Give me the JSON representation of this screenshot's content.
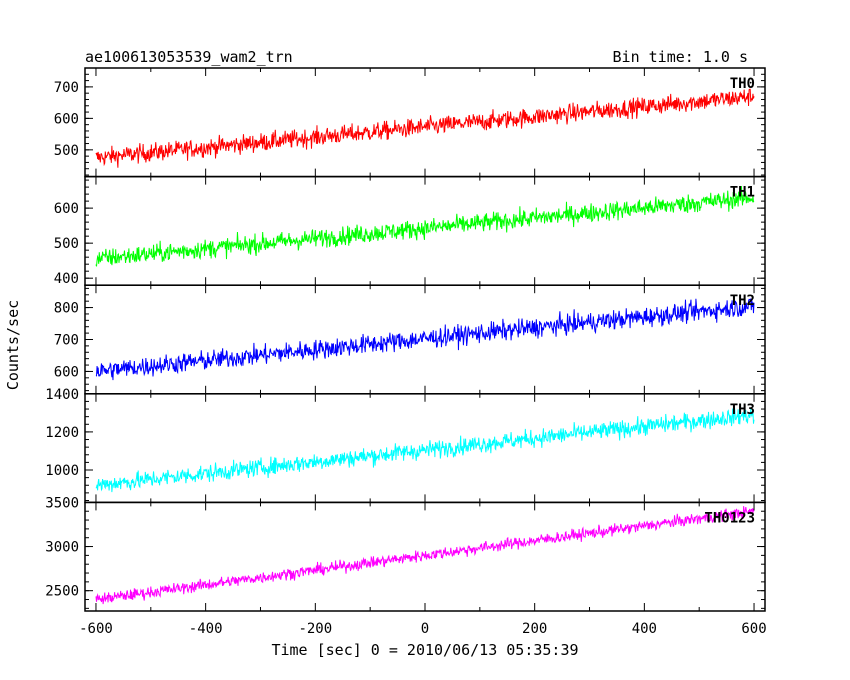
{
  "header": {
    "title": "ae100613053539_wam2_trn",
    "bin_time": "Bin time: 1.0 s"
  },
  "axes": {
    "xlabel": "Time [sec] 0 = 2010/06/13 05:35:39",
    "ylabel": "Counts/sec"
  },
  "chart_data": {
    "type": "line",
    "title": "ae100613053539_wam2_trn",
    "xlabel": "Time [sec] 0 = 2010/06/13 05:35:39",
    "ylabel": "Counts/sec",
    "xlim": [
      -620,
      620
    ],
    "x_range": [
      -600,
      600
    ],
    "x_step": 1.0,
    "x_ticks": [
      -600,
      -400,
      -200,
      0,
      200,
      400,
      600
    ],
    "grid": false,
    "panels": [
      {
        "name": "TH0",
        "color": "#ff0000",
        "ylim": [
          415,
          760
        ],
        "y_ticks": [
          500,
          600,
          700
        ],
        "start_value": 475,
        "end_value": 670,
        "noise": 38
      },
      {
        "name": "TH1",
        "color": "#00ff00",
        "ylim": [
          380,
          690
        ],
        "y_ticks": [
          400,
          500,
          600
        ],
        "start_value": 455,
        "end_value": 630,
        "noise": 35
      },
      {
        "name": "TH2",
        "color": "#0000ff",
        "ylim": [
          530,
          870
        ],
        "y_ticks": [
          600,
          700,
          800
        ],
        "start_value": 600,
        "end_value": 805,
        "noise": 40
      },
      {
        "name": "TH3",
        "color": "#00ffff",
        "ylim": [
          830,
          1400
        ],
        "y_ticks": [
          1000,
          1200,
          1400
        ],
        "start_value": 920,
        "end_value": 1290,
        "noise": 60
      },
      {
        "name": "TH0123",
        "color": "#ff00ff",
        "ylim": [
          2270,
          3500
        ],
        "y_ticks": [
          2500,
          3000,
          3500
        ],
        "start_value": 2400,
        "end_value": 3400,
        "noise": 85
      }
    ]
  }
}
